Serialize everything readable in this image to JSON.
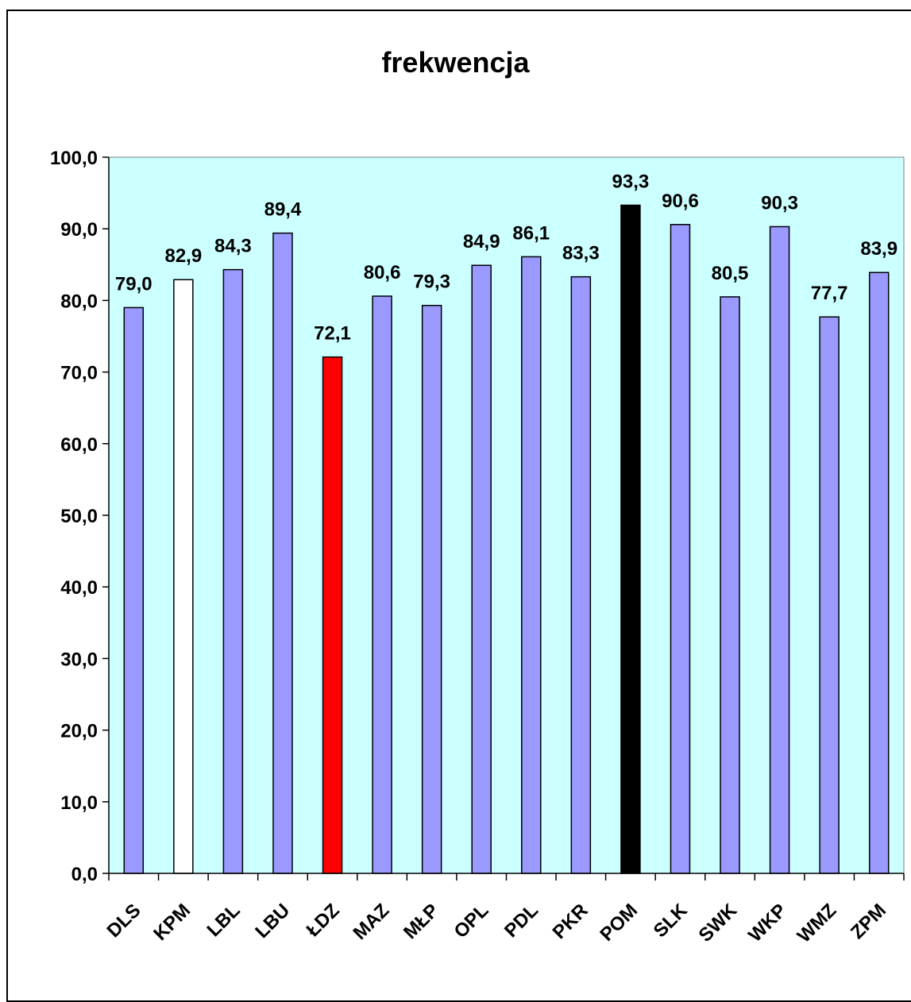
{
  "chart_data": {
    "type": "bar",
    "title": "frekwencja",
    "xlabel": "",
    "ylabel": "",
    "categories": [
      "DLS",
      "KPM",
      "LBL",
      "LBU",
      "ŁDZ",
      "MAZ",
      "MŁP",
      "OPL",
      "PDL",
      "PKR",
      "POM",
      "SLK",
      "SWK",
      "WKP",
      "WMZ",
      "ZPM"
    ],
    "values": [
      79.0,
      82.9,
      84.3,
      89.4,
      72.1,
      80.6,
      79.3,
      84.9,
      86.1,
      83.3,
      93.3,
      90.6,
      80.5,
      90.3,
      77.7,
      83.9
    ],
    "value_labels": [
      "79,0",
      "82,9",
      "84,3",
      "89,4",
      "72,1",
      "80,6",
      "79,3",
      "84,9",
      "86,1",
      "83,3",
      "93,3",
      "90,6",
      "80,5",
      "90,3",
      "77,7",
      "83,9"
    ],
    "bar_colors": [
      "#9999ff",
      "#ffffff",
      "#9999ff",
      "#9999ff",
      "#ff0000",
      "#9999ff",
      "#9999ff",
      "#9999ff",
      "#9999ff",
      "#9999ff",
      "#000000",
      "#9999ff",
      "#9999ff",
      "#9999ff",
      "#9999ff",
      "#9999ff"
    ],
    "ylim": [
      0,
      100
    ],
    "yticks": [
      0,
      10,
      20,
      30,
      40,
      50,
      60,
      70,
      80,
      90,
      100
    ],
    "ytick_labels": [
      "0,0",
      "10,0",
      "20,0",
      "30,0",
      "40,0",
      "50,0",
      "60,0",
      "70,0",
      "80,0",
      "90,0",
      "100,0"
    ],
    "plot_background": "#ccffff",
    "grid": false,
    "legend": "none"
  }
}
